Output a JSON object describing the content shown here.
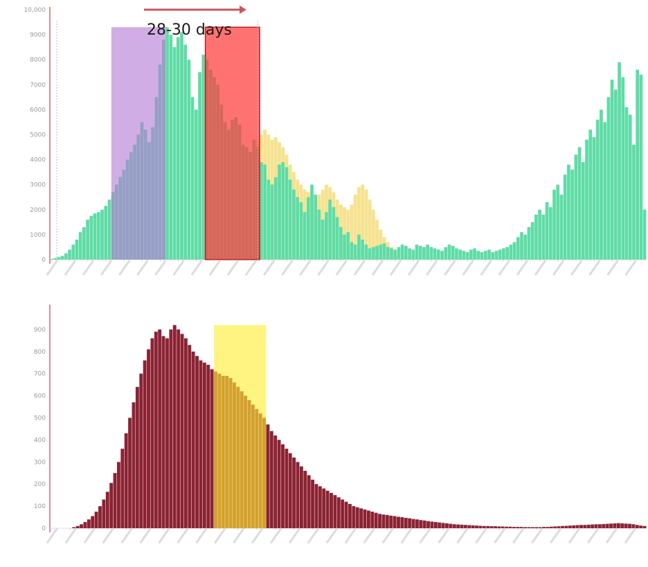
{
  "colors": {
    "cases": "#5fdca6",
    "deaths": "#8b2333",
    "purple_window": "#b57ad6",
    "red_window": "#ff3b3b",
    "yellow_window": "#ffee33",
    "yellow_shadow": "#f3d86a",
    "axis": "#c56b6b",
    "annotation_arrow": "#c9555f"
  },
  "annotation": {
    "text": "28-30 days"
  },
  "chart_data": [
    {
      "type": "bar",
      "title": "",
      "xlabel": "",
      "ylabel": "",
      "ylim": [
        0,
        10000
      ],
      "yticks": [
        {
          "value": 0,
          "label": "0"
        },
        {
          "value": 1000,
          "label": "1000"
        },
        {
          "value": 2000,
          "label": "2000"
        },
        {
          "value": 3000,
          "label": "3000"
        },
        {
          "value": 4000,
          "label": "4000"
        },
        {
          "value": 5000,
          "label": "5000"
        },
        {
          "value": 6000,
          "label": "6000"
        },
        {
          "value": 7000,
          "label": "7000"
        },
        {
          "value": 8000,
          "label": "8000"
        },
        {
          "value": 9000,
          "label": "9000"
        },
        {
          "value": 10000,
          "label": "10,000"
        }
      ],
      "bar_count": 160,
      "values": [
        30,
        60,
        100,
        150,
        250,
        400,
        600,
        800,
        1100,
        1300,
        1600,
        1750,
        1850,
        1900,
        2000,
        2150,
        2400,
        2700,
        3000,
        3300,
        3600,
        4000,
        4300,
        4600,
        5000,
        5500,
        5200,
        4700,
        5300,
        6500,
        7800,
        8800,
        9300,
        9000,
        8500,
        8900,
        9100,
        8600,
        8000,
        6500,
        6000,
        7500,
        8200,
        8000,
        7600,
        7300,
        7000,
        6200,
        5500,
        5200,
        5600,
        5700,
        5400,
        4600,
        4500,
        4300,
        4800,
        4500,
        3900,
        3800,
        3200,
        3000,
        3300,
        3800,
        3900,
        3700,
        3200,
        2800,
        2500,
        2300,
        1900,
        2500,
        3000,
        2600,
        2000,
        1600,
        1900,
        2400,
        2100,
        1700,
        1300,
        1000,
        1100,
        700,
        600,
        1000,
        800,
        600,
        450,
        500,
        550,
        600,
        650,
        500,
        450,
        400,
        500,
        600,
        550,
        450,
        400,
        600,
        550,
        500,
        600,
        500,
        450,
        400,
        350,
        500,
        600,
        550,
        450,
        400,
        350,
        300,
        400,
        450,
        350,
        300,
        350,
        400,
        300,
        350,
        400,
        450,
        500,
        600,
        700,
        900,
        1100,
        1000,
        1300,
        1500,
        1800,
        2000,
        1800,
        2300,
        2100,
        2800,
        3000,
        2600,
        3400,
        3800,
        3600,
        4200,
        4500,
        3900,
        4800,
        5200,
        4900,
        5600,
        6000,
        5500,
        6500,
        7200,
        6800,
        7900,
        7300,
        6100,
        5800,
        4600,
        7600,
        7400,
        2000
      ],
      "shadow_values": [
        0,
        0,
        0,
        0,
        0,
        0,
        0,
        0,
        0,
        0,
        0,
        0,
        0,
        0,
        0,
        0,
        0,
        0,
        0,
        0,
        0,
        0,
        0,
        0,
        0,
        0,
        0,
        0,
        0,
        0,
        0,
        0,
        0,
        0,
        0,
        0,
        0,
        0,
        0,
        0,
        0,
        0,
        0,
        0,
        0,
        0,
        0,
        0,
        0,
        0,
        0,
        0,
        0,
        0,
        0,
        0,
        0,
        4800,
        5000,
        5200,
        5000,
        4800,
        4900,
        4700,
        4500,
        4200,
        3800,
        3500,
        3200,
        3000,
        2800,
        2700,
        2600,
        2500,
        2600,
        2800,
        3000,
        2900,
        2700,
        2400,
        2200,
        2100,
        2000,
        2200,
        2600,
        2900,
        3000,
        2800,
        2400,
        2000,
        1600,
        1200,
        900,
        700,
        500,
        300,
        0,
        0,
        0,
        0,
        0,
        0,
        0,
        0,
        0,
        0,
        0,
        0,
        0,
        0,
        0,
        0,
        0,
        0,
        0,
        0,
        0,
        0,
        0,
        0,
        0,
        0,
        0,
        0,
        0,
        0,
        0,
        0,
        0,
        0,
        0,
        0,
        0,
        0,
        0,
        0,
        0,
        0,
        0,
        0,
        0,
        0,
        0,
        0,
        0,
        0,
        0,
        0,
        0,
        0,
        0,
        0,
        0,
        0,
        0,
        0,
        0,
        0,
        0,
        0,
        0,
        0,
        0,
        0,
        0,
        0,
        0,
        0,
        0,
        0,
        0,
        0,
        0,
        0
      ],
      "windows": [
        {
          "from_bar": 17,
          "to_bar": 31,
          "top": 9300,
          "color_key": "purple_window"
        },
        {
          "from_bar": 43,
          "to_bar": 57,
          "top": 9300,
          "color_key": "red_window"
        }
      ]
    },
    {
      "type": "bar",
      "title": "",
      "xlabel": "",
      "ylabel": "",
      "ylim": [
        0,
        1000
      ],
      "yticks": [
        {
          "value": 0,
          "label": "0"
        },
        {
          "value": 100,
          "label": "100"
        },
        {
          "value": 200,
          "label": "200"
        },
        {
          "value": 300,
          "label": "300"
        },
        {
          "value": 400,
          "label": "400"
        },
        {
          "value": 500,
          "label": "500"
        },
        {
          "value": 600,
          "label": "600"
        },
        {
          "value": 700,
          "label": "700"
        },
        {
          "value": 800,
          "label": "800"
        },
        {
          "value": 900,
          "label": "900"
        }
      ],
      "bar_count": 160,
      "values": [
        0,
        0,
        0,
        0,
        0,
        0,
        5,
        10,
        18,
        28,
        40,
        55,
        75,
        100,
        130,
        165,
        205,
        250,
        300,
        360,
        430,
        500,
        570,
        640,
        700,
        760,
        810,
        860,
        890,
        900,
        870,
        860,
        900,
        920,
        900,
        880,
        860,
        830,
        800,
        780,
        760,
        750,
        740,
        720,
        710,
        700,
        690,
        690,
        680,
        660,
        640,
        620,
        600,
        580,
        560,
        540,
        520,
        500,
        470,
        440,
        420,
        400,
        380,
        360,
        340,
        320,
        300,
        280,
        260,
        240,
        220,
        200,
        190,
        180,
        170,
        160,
        150,
        140,
        130,
        120,
        110,
        100,
        95,
        90,
        85,
        80,
        75,
        70,
        65,
        62,
        60,
        57,
        55,
        52,
        50,
        47,
        45,
        42,
        40,
        37,
        35,
        32,
        30,
        28,
        26,
        24,
        22,
        20,
        18,
        17,
        16,
        15,
        14,
        13,
        12,
        11,
        10,
        10,
        9,
        9,
        8,
        8,
        7,
        7,
        6,
        6,
        6,
        5,
        5,
        5,
        5,
        5,
        6,
        6,
        7,
        8,
        9,
        10,
        11,
        12,
        13,
        14,
        15,
        15,
        16,
        17,
        18,
        18,
        19,
        20,
        21,
        22,
        23,
        22,
        21,
        20,
        18,
        15,
        12,
        10
      ],
      "windows": [
        {
          "from_bar": 44,
          "to_bar": 57,
          "top": 920,
          "color_key": "yellow_window"
        }
      ]
    }
  ]
}
